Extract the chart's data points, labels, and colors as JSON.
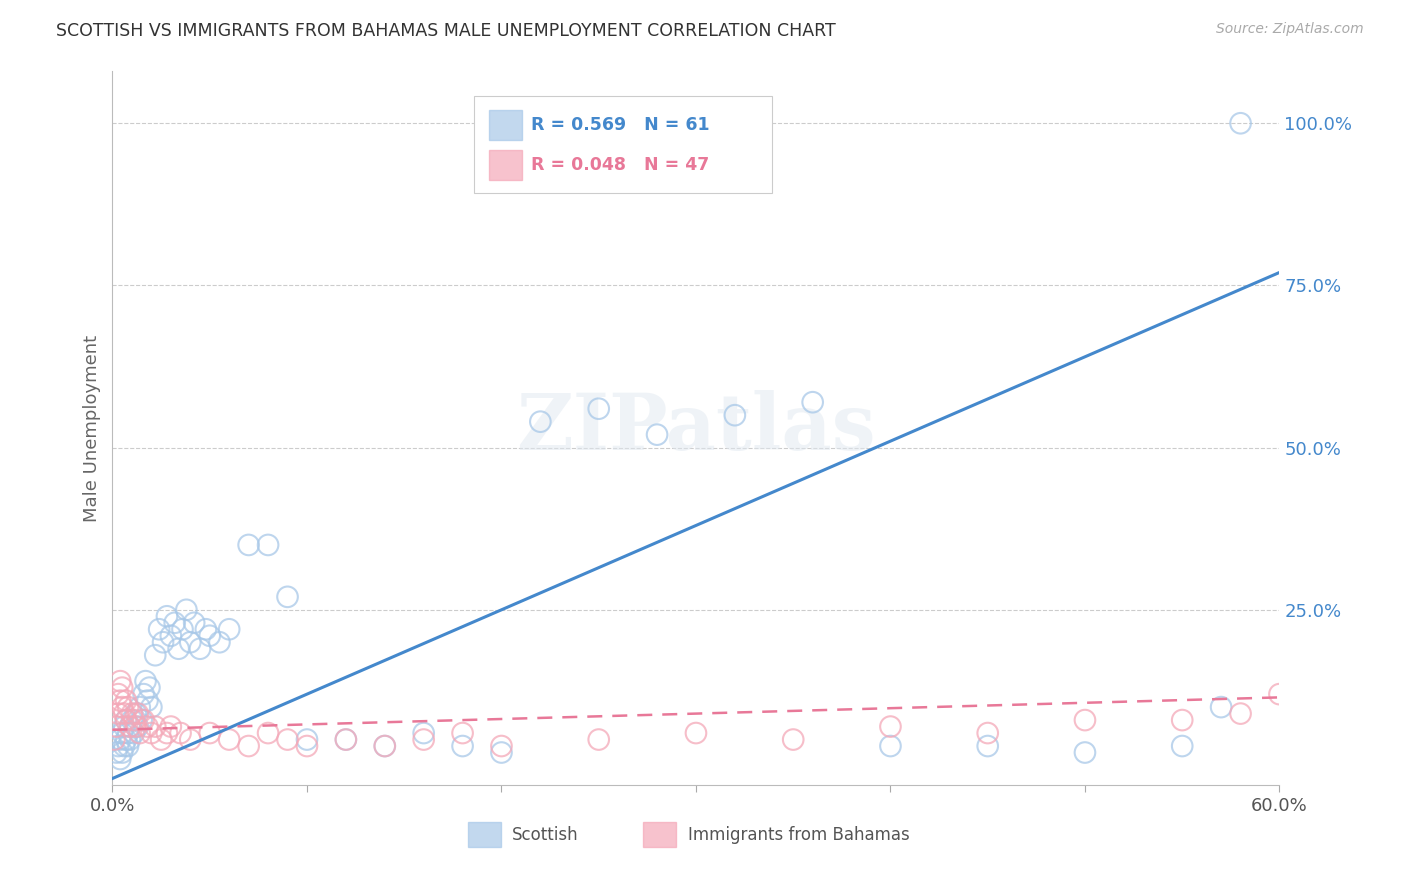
{
  "title": "SCOTTISH VS IMMIGRANTS FROM BAHAMAS MALE UNEMPLOYMENT CORRELATION CHART",
  "source": "Source: ZipAtlas.com",
  "ylabel": "Male Unemployment",
  "xlim": [
    0.0,
    0.6
  ],
  "ylim": [
    -0.02,
    1.08
  ],
  "yticks": [
    0.0,
    0.25,
    0.5,
    0.75,
    1.0
  ],
  "ytick_labels": [
    "",
    "25.0%",
    "50.0%",
    "75.0%",
    "100.0%"
  ],
  "xtick_positions": [
    0.0,
    0.1,
    0.2,
    0.3,
    0.4,
    0.5,
    0.6
  ],
  "xtick_labels": [
    "0.0%",
    "",
    "",
    "",
    "",
    "",
    "60.0%"
  ],
  "scottish_color": "#a8c8e8",
  "bahamas_color": "#f4a8b8",
  "trend_scottish_color": "#4488cc",
  "trend_bahamas_color": "#e87898",
  "background_color": "#ffffff",
  "watermark": "ZIPatlas",
  "scottish_x": [
    0.002,
    0.003,
    0.004,
    0.004,
    0.005,
    0.005,
    0.006,
    0.006,
    0.007,
    0.007,
    0.008,
    0.008,
    0.009,
    0.009,
    0.01,
    0.011,
    0.012,
    0.013,
    0.014,
    0.015,
    0.016,
    0.017,
    0.018,
    0.019,
    0.02,
    0.022,
    0.024,
    0.026,
    0.028,
    0.03,
    0.032,
    0.034,
    0.036,
    0.038,
    0.04,
    0.042,
    0.045,
    0.048,
    0.05,
    0.055,
    0.06,
    0.07,
    0.08,
    0.09,
    0.1,
    0.12,
    0.14,
    0.16,
    0.18,
    0.2,
    0.22,
    0.25,
    0.28,
    0.32,
    0.36,
    0.4,
    0.45,
    0.5,
    0.55,
    0.57,
    0.58
  ],
  "scottish_y": [
    0.03,
    0.04,
    0.02,
    0.05,
    0.03,
    0.06,
    0.04,
    0.07,
    0.05,
    0.08,
    0.06,
    0.04,
    0.07,
    0.05,
    0.08,
    0.06,
    0.09,
    0.07,
    0.1,
    0.08,
    0.12,
    0.14,
    0.11,
    0.13,
    0.1,
    0.18,
    0.22,
    0.2,
    0.24,
    0.21,
    0.23,
    0.19,
    0.22,
    0.25,
    0.2,
    0.23,
    0.19,
    0.22,
    0.21,
    0.2,
    0.22,
    0.35,
    0.35,
    0.27,
    0.05,
    0.05,
    0.04,
    0.06,
    0.04,
    0.03,
    0.54,
    0.56,
    0.52,
    0.55,
    0.57,
    0.04,
    0.04,
    0.03,
    0.04,
    0.1,
    1.0
  ],
  "bahamas_x": [
    0.001,
    0.002,
    0.003,
    0.003,
    0.004,
    0.004,
    0.005,
    0.005,
    0.006,
    0.007,
    0.007,
    0.008,
    0.009,
    0.01,
    0.011,
    0.012,
    0.013,
    0.014,
    0.016,
    0.018,
    0.02,
    0.022,
    0.025,
    0.028,
    0.03,
    0.035,
    0.04,
    0.05,
    0.06,
    0.07,
    0.08,
    0.09,
    0.1,
    0.12,
    0.14,
    0.16,
    0.18,
    0.2,
    0.25,
    0.3,
    0.35,
    0.4,
    0.45,
    0.5,
    0.55,
    0.58,
    0.6
  ],
  "bahamas_y": [
    0.05,
    0.07,
    0.09,
    0.12,
    0.11,
    0.14,
    0.1,
    0.13,
    0.09,
    0.11,
    0.08,
    0.1,
    0.07,
    0.09,
    0.08,
    0.07,
    0.09,
    0.06,
    0.08,
    0.07,
    0.06,
    0.07,
    0.05,
    0.06,
    0.07,
    0.06,
    0.05,
    0.06,
    0.05,
    0.04,
    0.06,
    0.05,
    0.04,
    0.05,
    0.04,
    0.05,
    0.06,
    0.04,
    0.05,
    0.06,
    0.05,
    0.07,
    0.06,
    0.08,
    0.08,
    0.09,
    0.12
  ],
  "trend_scottish_x0": 0.0,
  "trend_scottish_x1": 0.6,
  "trend_scottish_y0": -0.01,
  "trend_scottish_y1": 0.77,
  "trend_bahamas_x0": 0.0,
  "trend_bahamas_x1": 0.6,
  "trend_bahamas_y0": 0.065,
  "trend_bahamas_y1": 0.115
}
